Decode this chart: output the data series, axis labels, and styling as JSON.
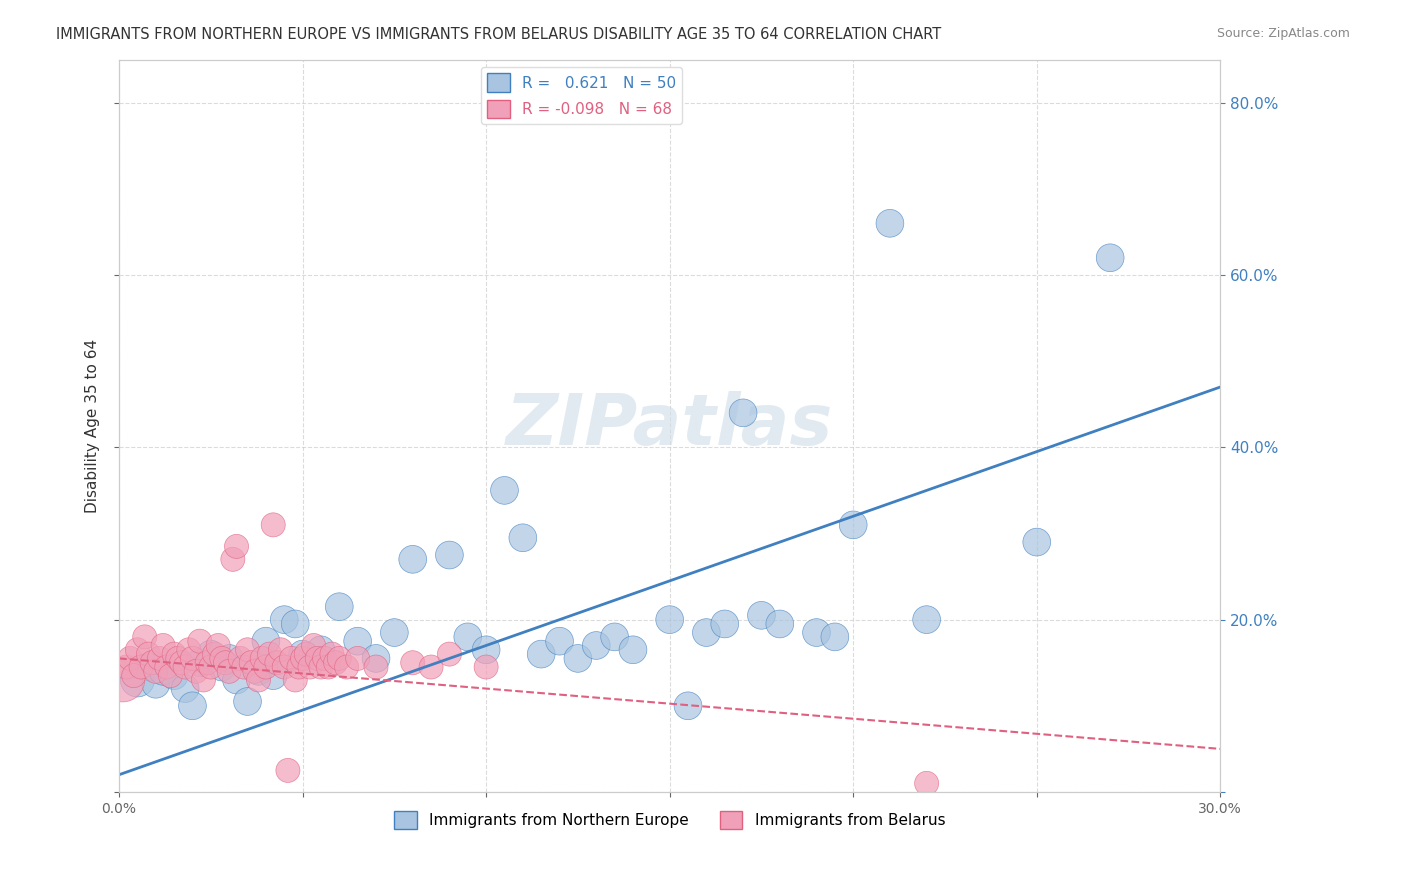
{
  "title": "IMMIGRANTS FROM NORTHERN EUROPE VS IMMIGRANTS FROM BELARUS DISABILITY AGE 35 TO 64 CORRELATION CHART",
  "source": "Source: ZipAtlas.com",
  "xlabel": "",
  "ylabel": "Disability Age 35 to 64",
  "xlim": [
    0.0,
    0.3
  ],
  "ylim": [
    0.0,
    0.85
  ],
  "xticks": [
    0.0,
    0.05,
    0.1,
    0.15,
    0.2,
    0.25,
    0.3
  ],
  "yticks": [
    0.0,
    0.2,
    0.4,
    0.6,
    0.8
  ],
  "xtick_labels": [
    "0.0%",
    "",
    "",
    "",
    "",
    "",
    "30.0%"
  ],
  "ytick_labels": [
    "",
    "20.0%",
    "40.0%",
    "60.0%",
    "80.0%"
  ],
  "r_blue": 0.621,
  "n_blue": 50,
  "r_pink": -0.098,
  "n_pink": 68,
  "legend_label_blue": "Immigrants from Northern Europe",
  "legend_label_pink": "Immigrants from Belarus",
  "color_blue": "#a8c4e0",
  "color_pink": "#f0a0b8",
  "trendline_blue": "#4080c0",
  "trendline_pink": "#e06080",
  "background_color": "#ffffff",
  "grid_color": "#cccccc",
  "watermark": "ZIPatlas",
  "watermark_color": "#d0dde8",
  "blue_scatter_x": [
    0.005,
    0.008,
    0.01,
    0.012,
    0.015,
    0.018,
    0.02,
    0.022,
    0.025,
    0.028,
    0.03,
    0.032,
    0.035,
    0.038,
    0.04,
    0.042,
    0.045,
    0.048,
    0.05,
    0.055,
    0.06,
    0.065,
    0.07,
    0.075,
    0.08,
    0.09,
    0.095,
    0.1,
    0.105,
    0.11,
    0.115,
    0.12,
    0.125,
    0.13,
    0.135,
    0.14,
    0.15,
    0.155,
    0.16,
    0.165,
    0.17,
    0.175,
    0.18,
    0.19,
    0.195,
    0.2,
    0.21,
    0.22,
    0.25,
    0.27
  ],
  "blue_scatter_y": [
    0.13,
    0.145,
    0.125,
    0.14,
    0.135,
    0.12,
    0.1,
    0.15,
    0.16,
    0.145,
    0.155,
    0.13,
    0.105,
    0.14,
    0.175,
    0.135,
    0.2,
    0.195,
    0.16,
    0.165,
    0.215,
    0.175,
    0.155,
    0.185,
    0.27,
    0.275,
    0.18,
    0.165,
    0.35,
    0.295,
    0.16,
    0.175,
    0.155,
    0.17,
    0.18,
    0.165,
    0.2,
    0.1,
    0.185,
    0.195,
    0.44,
    0.205,
    0.195,
    0.185,
    0.18,
    0.31,
    0.66,
    0.2,
    0.29,
    0.62
  ],
  "blue_scatter_size": [
    60,
    40,
    40,
    40,
    40,
    40,
    40,
    40,
    40,
    40,
    40,
    40,
    40,
    40,
    40,
    40,
    40,
    40,
    40,
    40,
    40,
    40,
    40,
    40,
    40,
    40,
    40,
    40,
    40,
    40,
    40,
    40,
    40,
    40,
    40,
    40,
    40,
    40,
    40,
    40,
    40,
    40,
    40,
    40,
    40,
    40,
    40,
    40,
    40,
    40
  ],
  "pink_scatter_x": [
    0.001,
    0.002,
    0.003,
    0.004,
    0.005,
    0.006,
    0.007,
    0.008,
    0.009,
    0.01,
    0.011,
    0.012,
    0.013,
    0.014,
    0.015,
    0.016,
    0.017,
    0.018,
    0.019,
    0.02,
    0.021,
    0.022,
    0.023,
    0.024,
    0.025,
    0.026,
    0.027,
    0.028,
    0.029,
    0.03,
    0.031,
    0.032,
    0.033,
    0.034,
    0.035,
    0.036,
    0.037,
    0.038,
    0.039,
    0.04,
    0.041,
    0.042,
    0.043,
    0.044,
    0.045,
    0.046,
    0.047,
    0.048,
    0.049,
    0.05,
    0.051,
    0.052,
    0.053,
    0.054,
    0.055,
    0.056,
    0.057,
    0.058,
    0.059,
    0.06,
    0.062,
    0.065,
    0.07,
    0.08,
    0.085,
    0.09,
    0.1,
    0.22
  ],
  "pink_scatter_y": [
    0.13,
    0.145,
    0.155,
    0.135,
    0.165,
    0.145,
    0.18,
    0.16,
    0.15,
    0.14,
    0.155,
    0.17,
    0.145,
    0.135,
    0.16,
    0.155,
    0.15,
    0.145,
    0.165,
    0.155,
    0.14,
    0.175,
    0.13,
    0.15,
    0.145,
    0.16,
    0.17,
    0.155,
    0.15,
    0.14,
    0.27,
    0.285,
    0.155,
    0.145,
    0.165,
    0.15,
    0.14,
    0.13,
    0.155,
    0.145,
    0.16,
    0.31,
    0.15,
    0.165,
    0.145,
    0.025,
    0.155,
    0.13,
    0.145,
    0.155,
    0.16,
    0.145,
    0.17,
    0.155,
    0.145,
    0.155,
    0.145,
    0.16,
    0.15,
    0.155,
    0.145,
    0.155,
    0.145,
    0.15,
    0.145,
    0.16,
    0.145,
    0.01
  ],
  "pink_scatter_size": [
    200,
    60,
    60,
    60,
    60,
    60,
    60,
    60,
    60,
    60,
    60,
    60,
    60,
    60,
    60,
    60,
    60,
    60,
    60,
    60,
    60,
    60,
    60,
    60,
    60,
    60,
    60,
    60,
    60,
    60,
    60,
    60,
    60,
    60,
    60,
    60,
    60,
    60,
    60,
    60,
    60,
    60,
    60,
    60,
    60,
    60,
    60,
    60,
    60,
    60,
    60,
    60,
    60,
    60,
    60,
    60,
    60,
    60,
    60,
    60,
    60,
    60,
    60,
    60,
    60,
    60,
    60,
    60
  ]
}
